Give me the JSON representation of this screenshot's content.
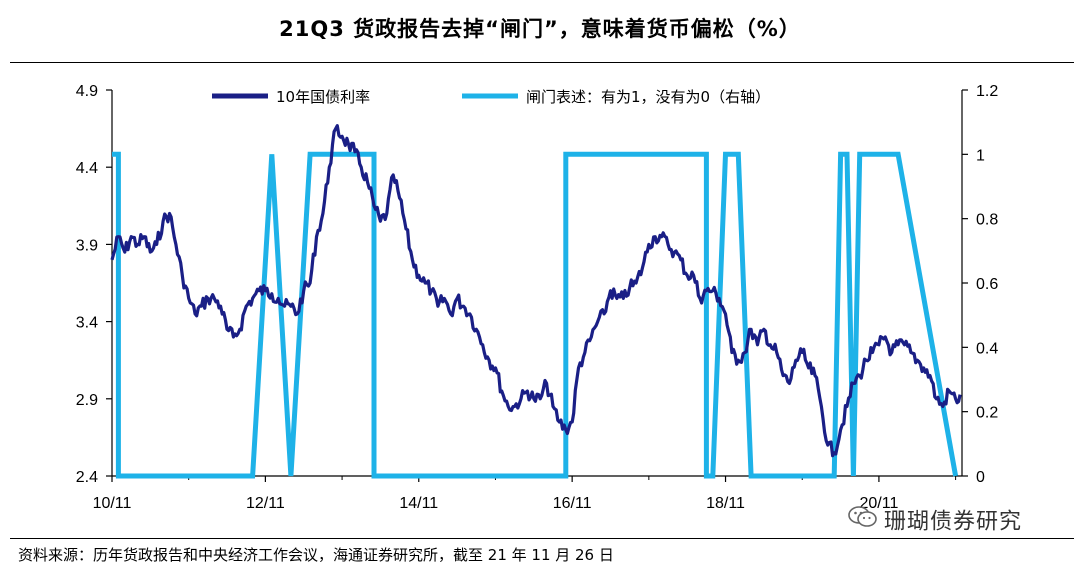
{
  "title": "21Q3 货政报告去掉“闸门”，意味着货币偏松（%）",
  "source": "资料来源：历年货政报告和中央经济工作会议，海通证券研究所，截至 21 年 11 月 26 日",
  "watermark": "珊瑚债券研究",
  "chart_data": {
    "type": "line",
    "x_ticks": [
      "10/11",
      "12/11",
      "14/11",
      "16/11",
      "18/11",
      "20/11"
    ],
    "y_left_ticks": [
      "2.4",
      "2.9",
      "3.4",
      "3.9",
      "4.4",
      "4.9"
    ],
    "y_right_ticks": [
      "0",
      "0.2",
      "0.4",
      "0.6",
      "0.8",
      "1",
      "1.2"
    ],
    "ylim_left": [
      2.4,
      4.9
    ],
    "ylim_right": [
      0,
      1.2
    ],
    "legend_position": "top",
    "series": [
      {
        "name": "10年国债利率",
        "axis": "left",
        "color": "#1a1f86",
        "x": [
          "2010-11",
          "2010-12",
          "2011-01",
          "2011-02",
          "2011-03",
          "2011-04",
          "2011-05",
          "2011-06",
          "2011-07",
          "2011-08",
          "2011-09",
          "2011-10",
          "2011-11",
          "2011-12",
          "2012-01",
          "2012-02",
          "2012-03",
          "2012-04",
          "2012-05",
          "2012-06",
          "2012-07",
          "2012-08",
          "2012-09",
          "2012-10",
          "2012-11",
          "2012-12",
          "2013-01",
          "2013-02",
          "2013-03",
          "2013-04",
          "2013-05",
          "2013-06",
          "2013-07",
          "2013-08",
          "2013-09",
          "2013-10",
          "2013-11",
          "2013-12",
          "2014-01",
          "2014-02",
          "2014-03",
          "2014-04",
          "2014-05",
          "2014-06",
          "2014-07",
          "2014-08",
          "2014-09",
          "2014-10",
          "2014-11",
          "2014-12",
          "2015-01",
          "2015-02",
          "2015-03",
          "2015-04",
          "2015-05",
          "2015-06",
          "2015-07",
          "2015-08",
          "2015-09",
          "2015-10",
          "2015-11",
          "2015-12",
          "2016-01",
          "2016-02",
          "2016-03",
          "2016-04",
          "2016-05",
          "2016-06",
          "2016-07",
          "2016-08",
          "2016-09",
          "2016-10",
          "2016-11",
          "2016-12",
          "2017-01",
          "2017-02",
          "2017-03",
          "2017-04",
          "2017-05",
          "2017-06",
          "2017-07",
          "2017-08",
          "2017-09",
          "2017-10",
          "2017-11",
          "2017-12",
          "2018-01",
          "2018-02",
          "2018-03",
          "2018-04",
          "2018-05",
          "2018-06",
          "2018-07",
          "2018-08",
          "2018-09",
          "2018-10",
          "2018-11",
          "2018-12",
          "2019-01",
          "2019-02",
          "2019-03",
          "2019-04",
          "2019-05",
          "2019-06",
          "2019-07",
          "2019-08",
          "2019-09",
          "2019-10",
          "2019-11",
          "2019-12",
          "2020-01",
          "2020-02",
          "2020-03",
          "2020-04",
          "2020-05",
          "2020-06",
          "2020-07",
          "2020-08",
          "2020-09",
          "2020-10",
          "2020-11",
          "2020-12",
          "2021-01",
          "2021-02",
          "2021-03",
          "2021-04",
          "2021-05",
          "2021-06",
          "2021-07",
          "2021-08",
          "2021-09",
          "2021-10",
          "2021-11"
        ],
        "values": [
          3.8,
          3.95,
          3.85,
          3.95,
          3.9,
          3.95,
          3.85,
          3.9,
          4.05,
          4.1,
          3.9,
          3.7,
          3.55,
          3.45,
          3.5,
          3.55,
          3.55,
          3.5,
          3.35,
          3.3,
          3.35,
          3.5,
          3.55,
          3.6,
          3.6,
          3.58,
          3.55,
          3.5,
          3.5,
          3.45,
          3.6,
          3.65,
          3.95,
          4.1,
          4.4,
          4.65,
          4.6,
          4.55,
          4.5,
          4.4,
          4.3,
          4.15,
          4.05,
          4.1,
          4.35,
          4.2,
          4.0,
          3.8,
          3.7,
          3.65,
          3.6,
          3.5,
          3.55,
          3.45,
          3.55,
          3.5,
          3.45,
          3.35,
          3.25,
          3.15,
          3.1,
          2.95,
          2.85,
          2.85,
          2.9,
          2.95,
          2.9,
          2.9,
          3.0,
          2.85,
          2.75,
          2.7,
          2.75,
          3.1,
          3.2,
          3.3,
          3.4,
          3.45,
          3.6,
          3.55,
          3.55,
          3.62,
          3.65,
          3.75,
          3.9,
          3.95,
          3.95,
          3.9,
          3.85,
          3.8,
          3.7,
          3.7,
          3.55,
          3.6,
          3.6,
          3.55,
          3.45,
          3.2,
          3.15,
          3.2,
          3.35,
          3.25,
          3.35,
          3.25,
          3.2,
          3.05,
          3.0,
          3.15,
          3.2,
          3.1,
          3.05,
          2.85,
          2.6,
          2.55,
          2.7,
          2.85,
          3.0,
          3.05,
          3.15,
          3.2,
          3.25,
          3.3,
          3.2,
          3.25,
          3.25,
          3.2,
          3.15,
          3.1,
          3.05,
          2.9,
          2.85,
          2.95,
          2.9
        ]
      },
      {
        "name": "闸门表述：有为1，没有为0（右轴）",
        "axis": "right",
        "color": "#1eb2e8",
        "x": [
          "2010-11",
          "2010-12",
          "2010-12",
          "2012-09",
          "2012-12",
          "2013-03",
          "2013-06",
          "2014-01",
          "2014-02",
          "2014-04",
          "2014-04",
          "2016-10",
          "2016-10",
          "2018-08",
          "2018-08",
          "2018-09",
          "2018-11",
          "2019-01",
          "2019-03",
          "2020-04",
          "2020-05",
          "2020-06",
          "2020-07",
          "2020-08",
          "2021-01",
          "2021-02",
          "2021-11"
        ],
        "values": [
          1,
          1,
          0,
          0,
          1,
          0,
          1,
          1,
          1,
          1,
          0,
          0,
          1,
          1,
          0,
          0,
          1,
          1,
          0,
          0,
          1,
          1,
          0,
          1,
          1,
          1,
          0
        ]
      }
    ]
  }
}
